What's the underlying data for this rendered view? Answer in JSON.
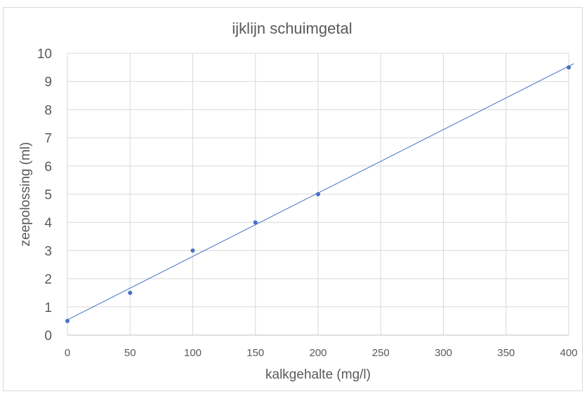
{
  "chart_data": {
    "type": "scatter",
    "title": "ijklijn schuimgetal",
    "xlabel": "kalkgehalte (mg/l)",
    "ylabel": "zeepolossing (ml)",
    "xlim": [
      0,
      400
    ],
    "ylim": [
      0,
      10
    ],
    "x_ticks": [
      "0",
      "50",
      "100",
      "150",
      "200",
      "250",
      "300",
      "350",
      "400"
    ],
    "y_ticks": [
      "0",
      "1",
      "2",
      "3",
      "4",
      "5",
      "6",
      "7",
      "8",
      "9",
      "10"
    ],
    "grid": true,
    "marker_color": "#4472c4",
    "series": [
      {
        "x": [
          0,
          50,
          100,
          150,
          200,
          400
        ],
        "y": [
          0.5,
          1.5,
          3.0,
          4.0,
          5.0,
          9.5
        ]
      }
    ],
    "trendline": {
      "type": "linear",
      "color": "#4472c4"
    }
  }
}
